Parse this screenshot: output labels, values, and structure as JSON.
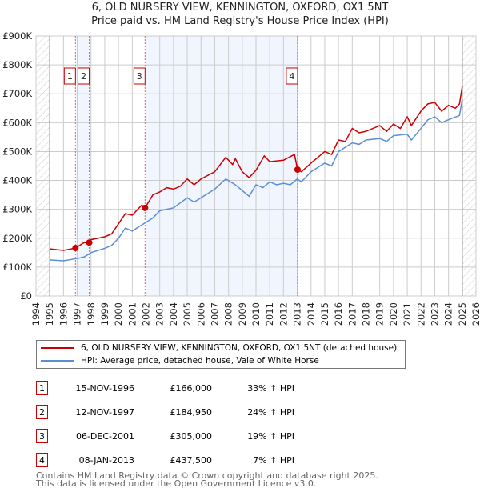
{
  "chart_data": {
    "type": "line",
    "title": "6, OLD NURSERY VIEW, KENNINGTON, OXFORD, OX1 5NT",
    "subtitle": "Price paid vs. HM Land Registry's House Price Index (HPI)",
    "xlim": [
      1994,
      2026
    ],
    "ylim": [
      0,
      900000
    ],
    "x_ticks": [
      "1994",
      "1995",
      "1996",
      "1997",
      "1998",
      "1999",
      "2000",
      "2001",
      "2002",
      "2003",
      "2004",
      "2005",
      "2006",
      "2007",
      "2008",
      "2009",
      "2010",
      "2011",
      "2012",
      "2013",
      "2014",
      "2015",
      "2016",
      "2017",
      "2018",
      "2019",
      "2020",
      "2021",
      "2022",
      "2023",
      "2024",
      "2025",
      "2026"
    ],
    "y_ticks": [
      {
        "v": 0,
        "label": "£0"
      },
      {
        "v": 100000,
        "label": "£100K"
      },
      {
        "v": 200000,
        "label": "£200K"
      },
      {
        "v": 300000,
        "label": "£300K"
      },
      {
        "v": 400000,
        "label": "£400K"
      },
      {
        "v": 500000,
        "label": "£500K"
      },
      {
        "v": 600000,
        "label": "£600K"
      },
      {
        "v": 700000,
        "label": "£700K"
      },
      {
        "v": 800000,
        "label": "£800K"
      },
      {
        "v": 900000,
        "label": "£900K"
      }
    ],
    "grid": true,
    "data_range": [
      1995,
      2025
    ],
    "series": [
      {
        "name": "6, OLD NURSERY VIEW, KENNINGTON, OXFORD, OX1 5NT (detached house)",
        "color": "#cc0000",
        "x": [
          1995,
          1996,
          1996.87,
          1997.5,
          1997.87,
          1998,
          1999,
          1999.5,
          2000,
          2000.5,
          2001,
          2001.7,
          2001.93,
          2002.5,
          2003,
          2003.5,
          2004,
          2004.5,
          2005,
          2005.5,
          2006,
          2007,
          2007.8,
          2008.3,
          2008.5,
          2009,
          2009.5,
          2010,
          2010.6,
          2011,
          2012,
          2012.8,
          2013.02,
          2013.3,
          2014,
          2015,
          2015.5,
          2016,
          2016.5,
          2017,
          2017.5,
          2018,
          2019,
          2019.5,
          2020,
          2020.5,
          2021,
          2021.3,
          2022,
          2022.5,
          2023,
          2023.5,
          2024,
          2024.5,
          2024.8,
          2025
        ],
        "y": [
          163000,
          158000,
          166000,
          185000,
          184950,
          195000,
          205000,
          215000,
          250000,
          285000,
          280000,
          315000,
          305000,
          350000,
          360000,
          375000,
          370000,
          380000,
          405000,
          385000,
          405000,
          430000,
          480000,
          455000,
          475000,
          430000,
          410000,
          435000,
          485000,
          465000,
          470000,
          490000,
          437500,
          430000,
          460000,
          500000,
          490000,
          540000,
          535000,
          580000,
          565000,
          570000,
          590000,
          570000,
          595000,
          580000,
          620000,
          590000,
          640000,
          665000,
          670000,
          640000,
          660000,
          650000,
          665000,
          725000
        ]
      },
      {
        "name": "HPI: Average price, detached house, Vale of White Horse",
        "color": "#5b8fd4",
        "x": [
          1995,
          1996,
          1997,
          1997.5,
          1998,
          1999,
          1999.5,
          2000,
          2000.5,
          2001,
          2002,
          2002.5,
          2003,
          2004,
          2005,
          2005.5,
          2006,
          2007,
          2007.8,
          2008.5,
          2009,
          2009.5,
          2010,
          2010.5,
          2011,
          2011.5,
          2012,
          2012.5,
          2013,
          2013.3,
          2014,
          2015,
          2015.5,
          2016,
          2017,
          2017.5,
          2018,
          2019,
          2019.5,
          2020,
          2021,
          2021.3,
          2022,
          2022.5,
          2023,
          2023.5,
          2024,
          2024.8,
          2025
        ],
        "y": [
          125000,
          122000,
          130000,
          135000,
          150000,
          165000,
          175000,
          200000,
          235000,
          225000,
          255000,
          270000,
          295000,
          305000,
          340000,
          325000,
          340000,
          370000,
          405000,
          385000,
          365000,
          345000,
          385000,
          375000,
          395000,
          385000,
          390000,
          385000,
          405000,
          395000,
          430000,
          460000,
          450000,
          500000,
          530000,
          525000,
          540000,
          545000,
          535000,
          555000,
          560000,
          540000,
          580000,
          610000,
          620000,
          600000,
          610000,
          625000,
          680000
        ]
      }
    ],
    "sales": [
      {
        "id": "1",
        "x": 1996.87,
        "date": "15-NOV-1996",
        "price": "£166,000",
        "value": 166000,
        "hpi": "33% ↑ HPI"
      },
      {
        "id": "2",
        "x": 1997.87,
        "date": "12-NOV-1997",
        "price": "£184,950",
        "value": 184950,
        "hpi": "24% ↑ HPI"
      },
      {
        "id": "3",
        "x": 2001.93,
        "date": "06-DEC-2001",
        "price": "£305,000",
        "value": 305000,
        "hpi": "19% ↑ HPI"
      },
      {
        "id": "4",
        "x": 2013.02,
        "date": "08-JAN-2013",
        "price": "£437,500",
        "value": 437500,
        "hpi": "7% ↑ HPI"
      }
    ]
  },
  "footer": {
    "line1": "Contains HM Land Registry data © Crown copyright and database right 2025.",
    "line2": "This data is licensed under the Open Government Licence v3.0."
  }
}
